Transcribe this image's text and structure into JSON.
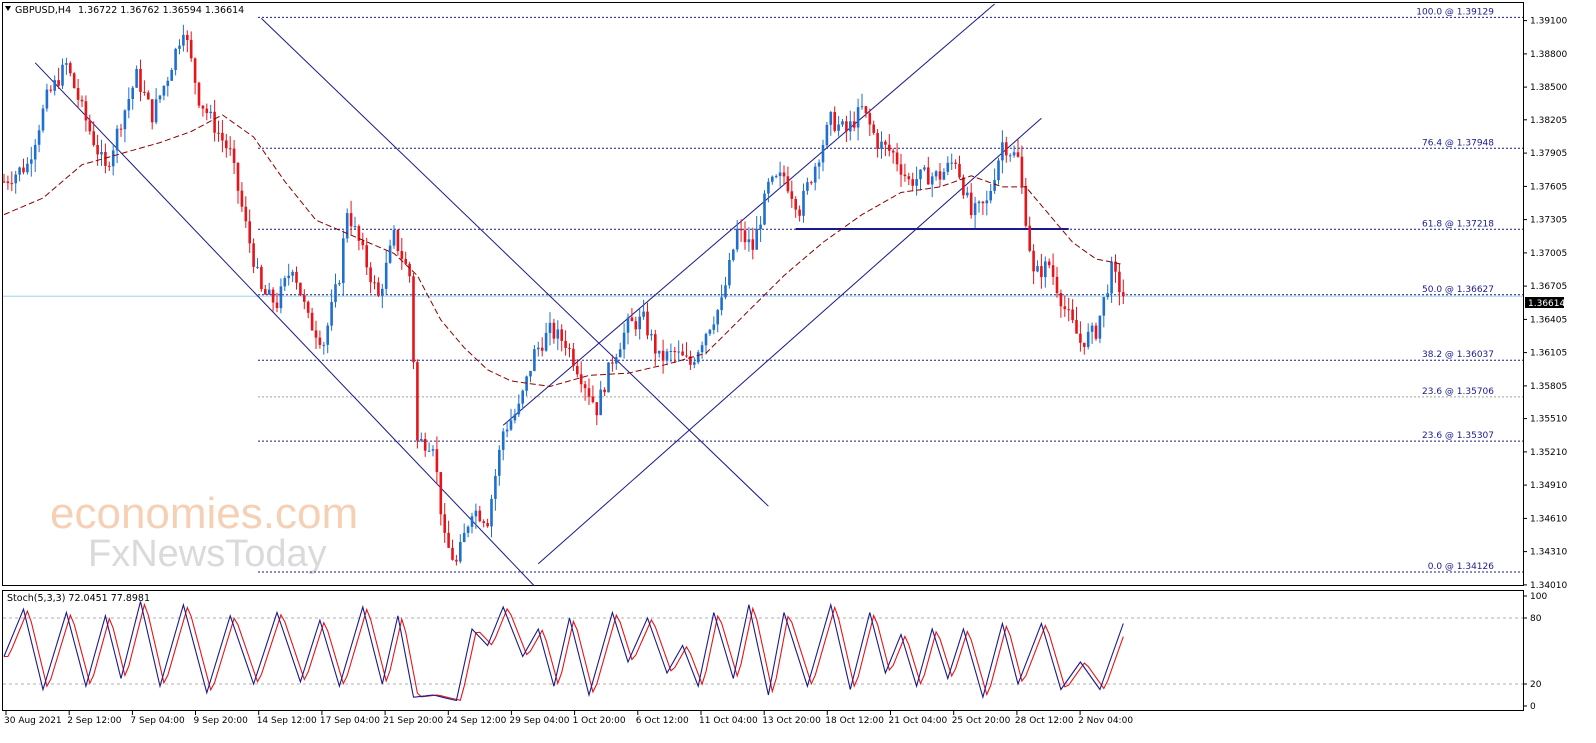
{
  "header": {
    "symbol": "GBPUSD,H4",
    "ohlc": "1.36722 1.36762 1.36594 1.36614"
  },
  "indicator": {
    "label": "Stoch(5,3,3) 72.0451 77.8981",
    "levels": [
      "100",
      "80",
      "20",
      "0"
    ]
  },
  "watermark": {
    "line1": "economies.com",
    "line2": "FxNewsToday"
  },
  "current_price": "1.36614",
  "colors": {
    "bull": "#1e6fd0",
    "bear": "#e8141b",
    "channel": "#1a1a8c",
    "ma": "#8b0000",
    "stoch_main": "#1a1a8c",
    "stoch_signal": "#e8141b"
  },
  "chart_data": {
    "type": "candlestick",
    "ylim": [
      1.34,
      1.3925
    ],
    "price_ticks": [
      "1.39100",
      "1.38800",
      "1.38500",
      "1.38205",
      "1.37905",
      "1.37605",
      "1.37305",
      "1.37005",
      "1.36705",
      "1.36405",
      "1.36105",
      "1.35805",
      "1.35510",
      "1.35210",
      "1.34910",
      "1.34610",
      "1.34310",
      "1.34010"
    ],
    "time_labels": [
      "30 Aug 2021",
      "2 Sep 12:00",
      "7 Sep 04:00",
      "9 Sep 20:00",
      "14 Sep 12:00",
      "17 Sep 04:00",
      "21 Sep 20:00",
      "24 Sep 12:00",
      "29 Sep 04:00",
      "1 Oct 20:00",
      "6 Oct 12:00",
      "11 Oct 04:00",
      "13 Oct 20:00",
      "18 Oct 12:00",
      "21 Oct 04:00",
      "25 Oct 20:00",
      "28 Oct 12:00",
      "2 Nov 04:00"
    ],
    "fib_levels": [
      {
        "label": "100.0 @ 1.39129",
        "price": 1.39129,
        "style": "fib"
      },
      {
        "label": "76.4 @ 1.37948",
        "price": 1.37948,
        "style": "fib"
      },
      {
        "label": "61.8 @ 1.37218",
        "price": 1.37218,
        "style": "fib"
      },
      {
        "label": "50.0 @ 1.36627",
        "price": 1.36627,
        "style": "fib"
      },
      {
        "label": "38.2 @ 1.36037",
        "price": 1.36037,
        "style": "fib"
      },
      {
        "label": "23.6 @ 1.35706",
        "price": 1.35706,
        "style": "grey"
      },
      {
        "label": "23.6 @ 1.35307",
        "price": 1.35307,
        "style": "fib"
      },
      {
        "label": "0.0 @ 1.34126",
        "price": 1.34126,
        "style": "fib"
      }
    ],
    "anchors": [
      [
        0,
        1.3765
      ],
      [
        6,
        1.378
      ],
      [
        11,
        1.384
      ],
      [
        16,
        1.387
      ],
      [
        21,
        1.382
      ],
      [
        26,
        1.3775
      ],
      [
        30,
        1.382
      ],
      [
        34,
        1.386
      ],
      [
        38,
        1.3825
      ],
      [
        42,
        1.386
      ],
      [
        46,
        1.3905
      ],
      [
        50,
        1.384
      ],
      [
        54,
        1.3815
      ],
      [
        58,
        1.379
      ],
      [
        62,
        1.3725
      ],
      [
        66,
        1.3665
      ],
      [
        70,
        1.3655
      ],
      [
        74,
        1.369
      ],
      [
        78,
        1.364
      ],
      [
        82,
        1.362
      ],
      [
        86,
        1.368
      ],
      [
        88,
        1.374
      ],
      [
        92,
        1.37
      ],
      [
        96,
        1.366
      ],
      [
        100,
        1.3715
      ],
      [
        104,
        1.368
      ],
      [
        106,
        1.353
      ],
      [
        110,
        1.353
      ],
      [
        113,
        1.344
      ],
      [
        116,
        1.342
      ],
      [
        120,
        1.347
      ],
      [
        124,
        1.346
      ],
      [
        128,
        1.354
      ],
      [
        132,
        1.356
      ],
      [
        136,
        1.361
      ],
      [
        140,
        1.363
      ],
      [
        144,
        1.362
      ],
      [
        148,
        1.359
      ],
      [
        152,
        1.356
      ],
      [
        156,
        1.3605
      ],
      [
        160,
        1.3635
      ],
      [
        164,
        1.364
      ],
      [
        168,
        1.3605
      ],
      [
        172,
        1.361
      ],
      [
        176,
        1.36
      ],
      [
        180,
        1.363
      ],
      [
        184,
        1.3655
      ],
      [
        188,
        1.372
      ],
      [
        192,
        1.3705
      ],
      [
        196,
        1.376
      ],
      [
        200,
        1.377
      ],
      [
        204,
        1.374
      ],
      [
        208,
        1.378
      ],
      [
        212,
        1.382
      ],
      [
        216,
        1.381
      ],
      [
        220,
        1.383
      ],
      [
        224,
        1.38
      ],
      [
        228,
        1.379
      ],
      [
        232,
        1.3765
      ],
      [
        236,
        1.377
      ],
      [
        240,
        1.377
      ],
      [
        244,
        1.3785
      ],
      [
        248,
        1.3735
      ],
      [
        252,
        1.3745
      ],
      [
        256,
        1.38
      ],
      [
        260,
        1.3785
      ],
      [
        264,
        1.368
      ],
      [
        268,
        1.369
      ],
      [
        272,
        1.365
      ],
      [
        276,
        1.362
      ],
      [
        280,
        1.363
      ],
      [
        284,
        1.3685
      ],
      [
        287,
        1.3661
      ]
    ],
    "ma_points": [
      [
        0,
        1.3735
      ],
      [
        10,
        1.375
      ],
      [
        20,
        1.378
      ],
      [
        30,
        1.379
      ],
      [
        40,
        1.38
      ],
      [
        48,
        1.381
      ],
      [
        56,
        1.3825
      ],
      [
        64,
        1.3805
      ],
      [
        72,
        1.3765
      ],
      [
        80,
        1.373
      ],
      [
        90,
        1.3715
      ],
      [
        100,
        1.37
      ],
      [
        106,
        1.368
      ],
      [
        112,
        1.364
      ],
      [
        118,
        1.3615
      ],
      [
        124,
        1.3595
      ],
      [
        130,
        1.3585
      ],
      [
        140,
        1.358
      ],
      [
        150,
        1.359
      ],
      [
        160,
        1.3592
      ],
      [
        170,
        1.36
      ],
      [
        180,
        1.361
      ],
      [
        190,
        1.3645
      ],
      [
        200,
        1.368
      ],
      [
        210,
        1.371
      ],
      [
        220,
        1.3735
      ],
      [
        230,
        1.3755
      ],
      [
        240,
        1.376
      ],
      [
        248,
        1.377
      ],
      [
        256,
        1.376
      ],
      [
        262,
        1.376
      ],
      [
        268,
        1.3735
      ],
      [
        274,
        1.371
      ],
      [
        280,
        1.3695
      ],
      [
        287,
        1.369
      ]
    ],
    "stoch_turns": [
      [
        0,
        45
      ],
      [
        5,
        88
      ],
      [
        10,
        15
      ],
      [
        16,
        85
      ],
      [
        21,
        18
      ],
      [
        26,
        82
      ],
      [
        30,
        25
      ],
      [
        35,
        95
      ],
      [
        40,
        18
      ],
      [
        46,
        92
      ],
      [
        52,
        12
      ],
      [
        58,
        82
      ],
      [
        64,
        20
      ],
      [
        70,
        85
      ],
      [
        76,
        22
      ],
      [
        81,
        78
      ],
      [
        86,
        18
      ],
      [
        92,
        90
      ],
      [
        97,
        20
      ],
      [
        101,
        82
      ],
      [
        105,
        8
      ],
      [
        110,
        10
      ],
      [
        116,
        5
      ],
      [
        120,
        70
      ],
      [
        124,
        55
      ],
      [
        128,
        90
      ],
      [
        133,
        45
      ],
      [
        137,
        70
      ],
      [
        141,
        18
      ],
      [
        145,
        80
      ],
      [
        150,
        10
      ],
      [
        156,
        85
      ],
      [
        160,
        40
      ],
      [
        165,
        80
      ],
      [
        170,
        30
      ],
      [
        174,
        55
      ],
      [
        178,
        18
      ],
      [
        182,
        85
      ],
      [
        187,
        25
      ],
      [
        191,
        92
      ],
      [
        196,
        10
      ],
      [
        200,
        85
      ],
      [
        206,
        18
      ],
      [
        212,
        92
      ],
      [
        217,
        15
      ],
      [
        222,
        85
      ],
      [
        226,
        30
      ],
      [
        230,
        65
      ],
      [
        234,
        18
      ],
      [
        238,
        70
      ],
      [
        242,
        25
      ],
      [
        246,
        70
      ],
      [
        251,
        8
      ],
      [
        256,
        75
      ],
      [
        260,
        20
      ],
      [
        266,
        75
      ],
      [
        271,
        15
      ],
      [
        276,
        40
      ],
      [
        281,
        15
      ],
      [
        287,
        75
      ]
    ]
  }
}
